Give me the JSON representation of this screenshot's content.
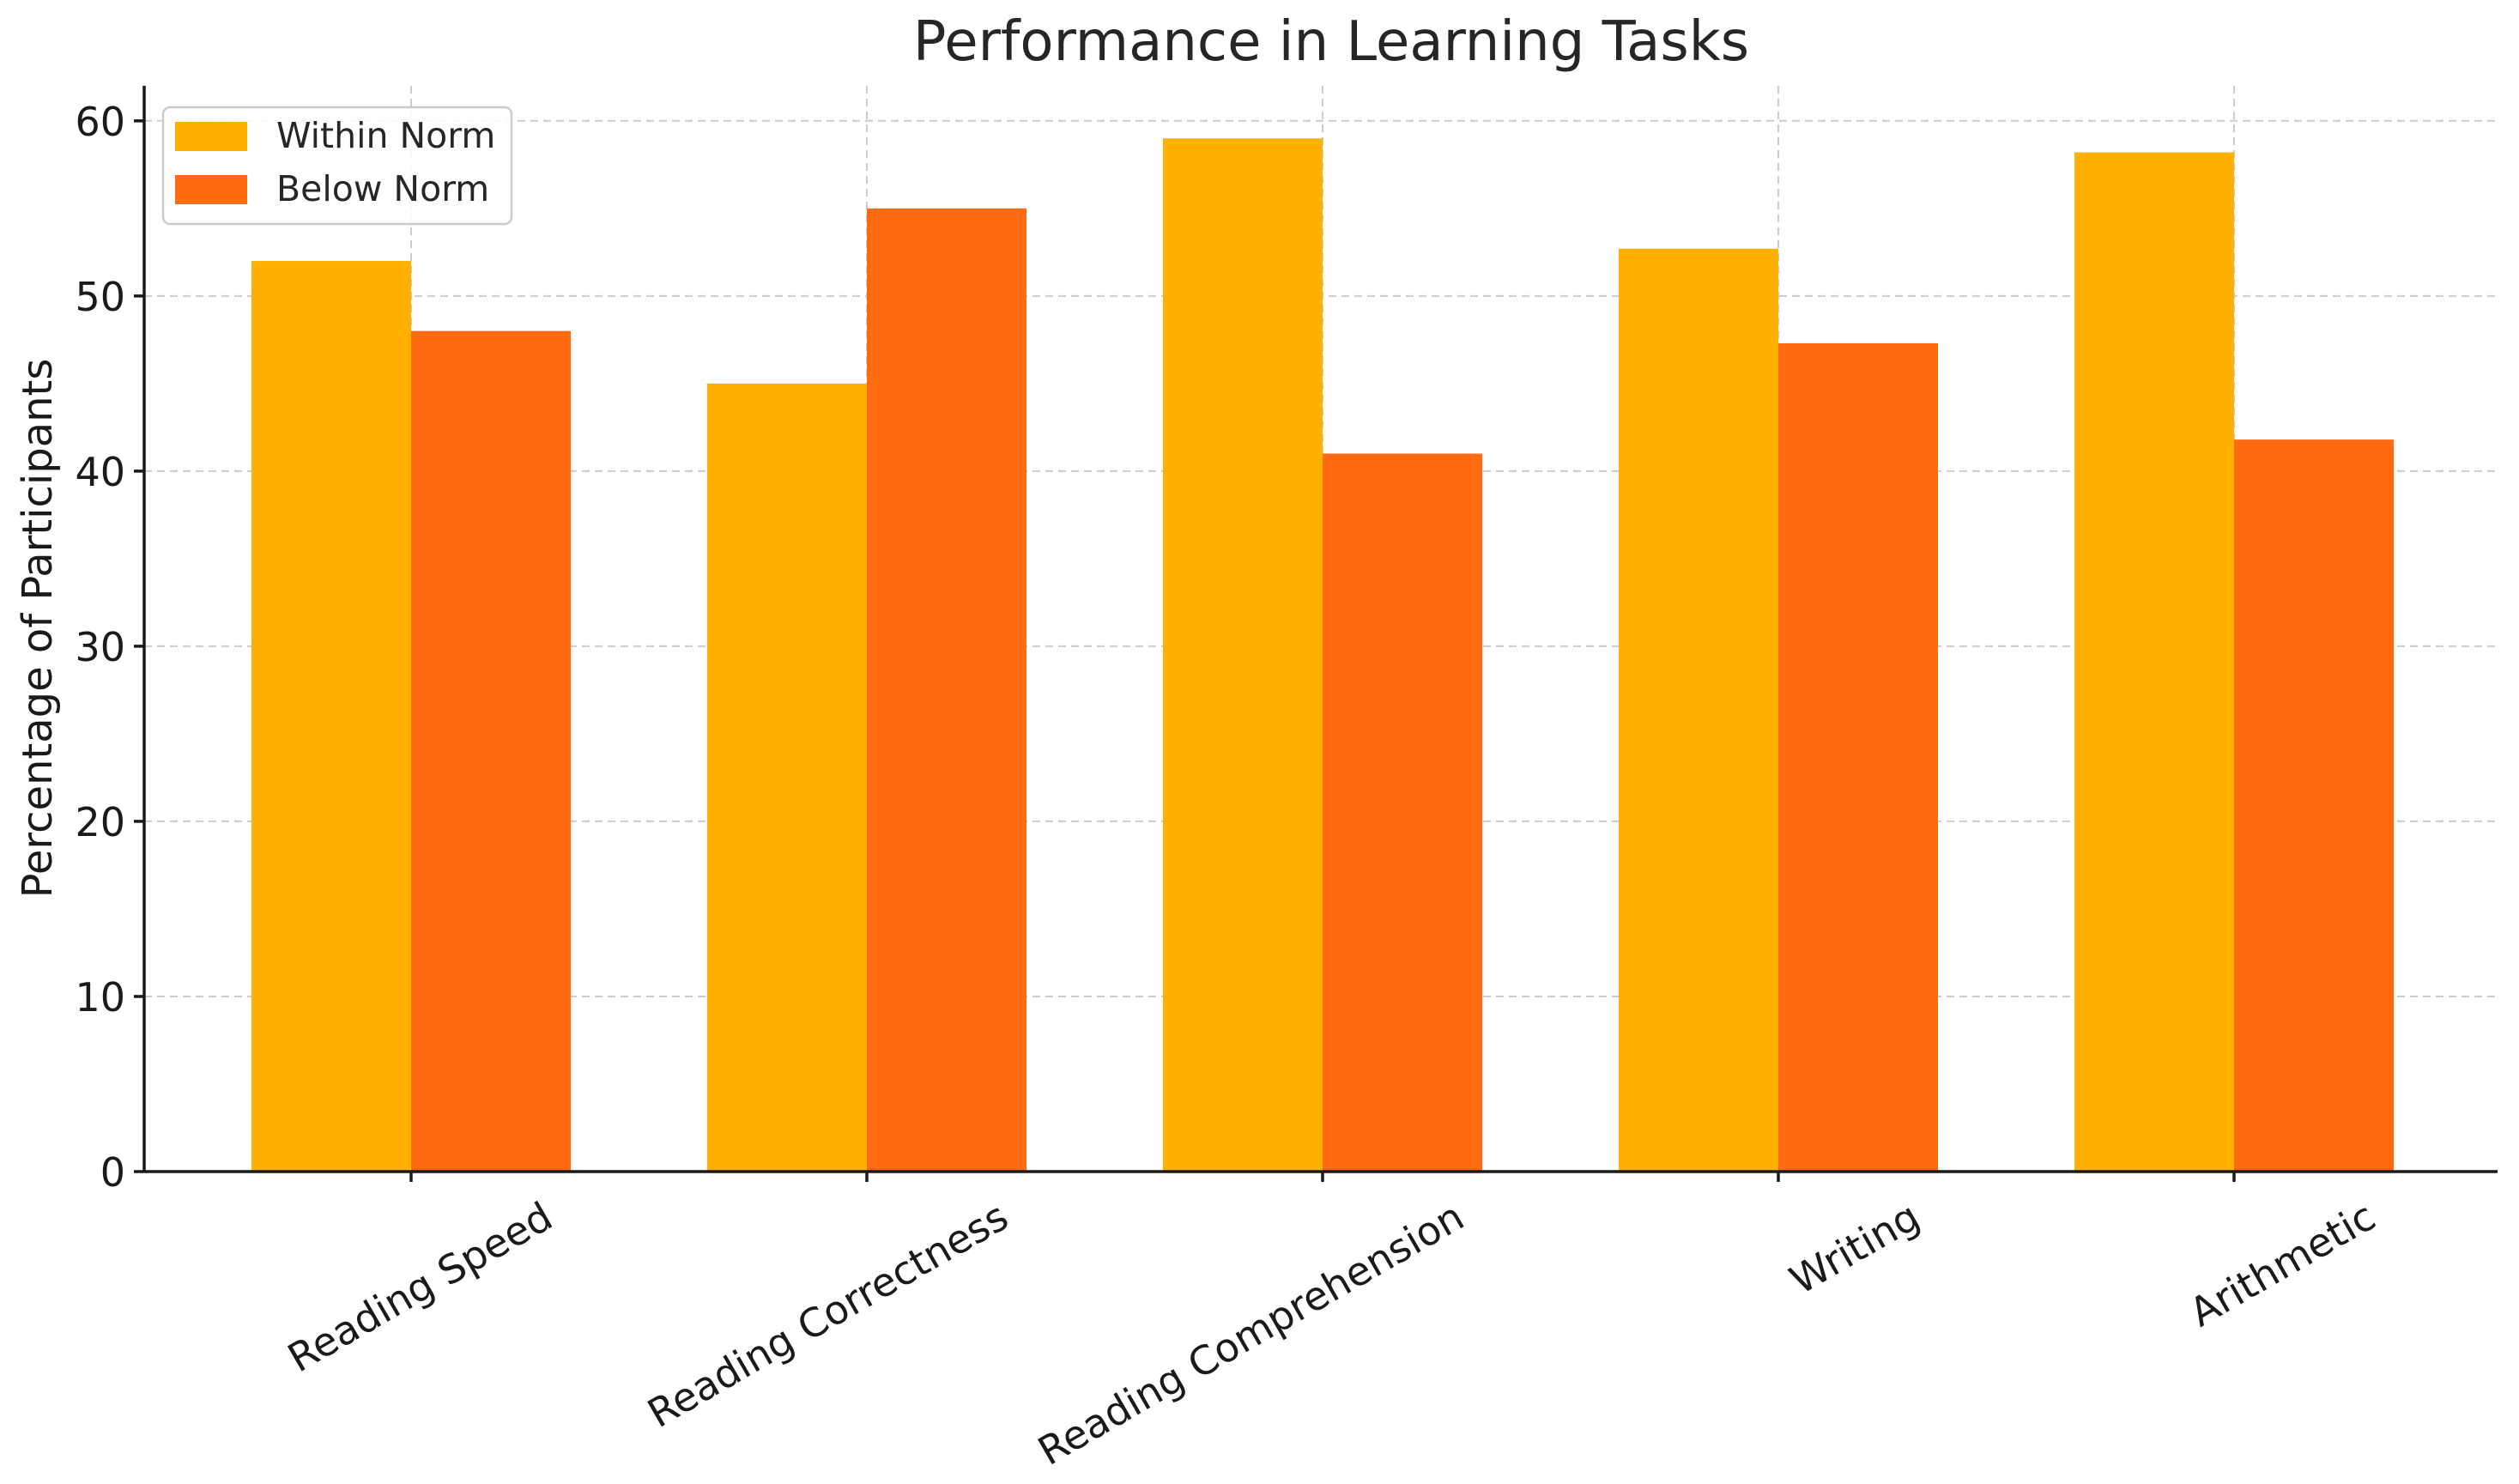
{
  "chart_data": {
    "type": "bar",
    "title": "Performance in Learning Tasks",
    "xlabel": "",
    "ylabel": "Percentage of Participants",
    "categories": [
      "Reading Speed",
      "Reading Correctness",
      "Reading Comprehension",
      "Writing",
      "Arithmetic"
    ],
    "series": [
      {
        "name": "Within Norm",
        "color": "#FFB000",
        "values": [
          52,
          45,
          59,
          52.7,
          58.2
        ]
      },
      {
        "name": "Below Norm",
        "color": "#FF6A13",
        "values": [
          48,
          55,
          41,
          47.3,
          41.8
        ]
      }
    ],
    "ylim": [
      0,
      62
    ],
    "yticks": [
      0,
      10,
      20,
      30,
      40,
      50,
      60
    ],
    "grid": true,
    "legend_position": "top-left"
  }
}
